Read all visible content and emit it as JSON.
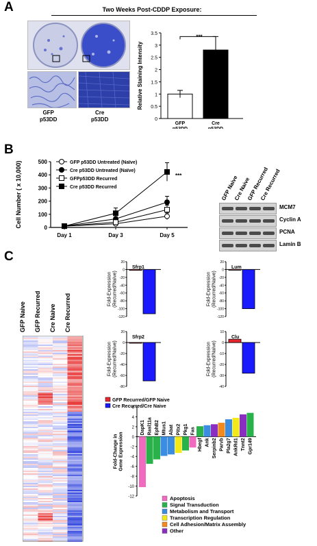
{
  "panelA": {
    "letter": "A",
    "title": "Two Weeks Post-CDDP Exposure:",
    "micro_labels": [
      "GFP\np53DD",
      "Cre\np53DD"
    ],
    "significance": "***",
    "chart_data": {
      "type": "bar",
      "categories": [
        "GFP p53DD",
        "Cre p53DD"
      ],
      "tick_labels": [
        [
          "GFP",
          "p53DD"
        ],
        [
          "Cre",
          "p53DD"
        ]
      ],
      "values": [
        1.0,
        2.8
      ],
      "errors": [
        0.15,
        0.55
      ],
      "ylabel": "Relative Staining Intensity",
      "ylim": [
        0,
        3.5
      ],
      "yticks": [
        "0",
        "0.5",
        "1",
        "1.5",
        "2",
        "2.5",
        "3",
        "3.5"
      ],
      "bar_colors": [
        "#ffffff",
        "#000000"
      ]
    }
  },
  "panelB": {
    "letter": "B",
    "significance": "***",
    "chart_data": {
      "type": "line",
      "x": [
        "Day 1",
        "Day 3",
        "Day 5"
      ],
      "ylabel": "Cell Number ( x 10,000)",
      "ylim": [
        0,
        500
      ],
      "yticks": [
        "0",
        "100",
        "200",
        "300",
        "400",
        "500"
      ],
      "series": [
        {
          "name": "GFP p53DD Untreated (Naïve)",
          "values": [
            10,
            28,
            85
          ],
          "errors": [
            3,
            8,
            25
          ],
          "marker": "circle-open"
        },
        {
          "name": "Cre p53DD Untreated (Naïve)",
          "values": [
            10,
            65,
            192
          ],
          "errors": [
            3,
            15,
            45
          ],
          "marker": "circle-filled"
        },
        {
          "name": "GFPp53DD Recurred",
          "values": [
            10,
            40,
            135
          ],
          "errors": [
            3,
            12,
            35
          ],
          "marker": "square-open"
        },
        {
          "name": "Cre p53DD Recurred",
          "values": [
            10,
            108,
            422
          ],
          "errors": [
            4,
            40,
            70
          ],
          "marker": "square-filled"
        }
      ]
    },
    "blot": {
      "lanes": [
        "GFP Naive",
        "Cre Naive",
        "GFP Recurred",
        "Cre Recurred"
      ],
      "bands": [
        "MCM7",
        "Cyclin A",
        "PCNA",
        "Lamin B"
      ]
    }
  },
  "panelC": {
    "letter": "C",
    "heatmap_columns": [
      "GFP Naive",
      "GFP Recurred",
      "Cre Naive",
      "Cre Recurred"
    ],
    "fold_ylabel": "Fold-Expression\n(Recurred/Naïve)",
    "small_charts": [
      {
        "gene": "Sfrp1",
        "values": [
          -2,
          -113
        ],
        "ylim": [
          -120,
          20
        ],
        "yticks": [
          "20",
          "0",
          "-20",
          "-40",
          "-60",
          "-80",
          "-100",
          "-120"
        ]
      },
      {
        "gene": "Lum",
        "values": [
          -1,
          -100
        ],
        "ylim": [
          -120,
          20
        ],
        "yticks": [
          "20",
          "0",
          "-20",
          "-40",
          "-60",
          "-80",
          "-100",
          "-120"
        ]
      },
      {
        "gene": "Sfrp2",
        "values": [
          -1,
          -70
        ],
        "ylim": [
          -80,
          20
        ],
        "yticks": [
          "20",
          "0",
          "-20",
          "-40",
          "-60",
          "-80"
        ]
      },
      {
        "gene": "Clu",
        "values": [
          3,
          -28
        ],
        "ylim": [
          -40,
          10
        ],
        "yticks": [
          "10",
          "0",
          "-10",
          "-20",
          "-30",
          "-40"
        ]
      }
    ],
    "small_legend": [
      {
        "label": "GFP Recurred/GFP Naive",
        "color": "#e8262e"
      },
      {
        "label": "Cre Recurred/Cre Naive",
        "color": "#1a1aff"
      }
    ],
    "gene_chart": {
      "type": "bar",
      "ylabel": "Fold-Change in\nGene Expression",
      "ylim": [
        -12,
        6
      ],
      "yticks": [
        "6",
        "4",
        "2",
        "0",
        "-2",
        "-4",
        "-6",
        "-8",
        "-10",
        "-12"
      ],
      "genes": [
        {
          "name": "DapK1",
          "value": -10.2,
          "category": "Apoptosis"
        },
        {
          "name": "Rasl11a",
          "value": -5.5,
          "category": "Signal Transduction"
        },
        {
          "name": "EphB2",
          "value": -4.6,
          "category": "Signal Transduction"
        },
        {
          "name": "Mtus1",
          "value": -3.9,
          "category": "Metabolism and Transport"
        },
        {
          "name": "Abat",
          "value": -3.6,
          "category": "Metabolism and Transport"
        },
        {
          "name": "Pitx2",
          "value": -3.3,
          "category": "Transcription Regulation"
        },
        {
          "name": "Pkg1",
          "value": -2.8,
          "category": "Signal Transduction"
        },
        {
          "name": "Fas",
          "value": -2.2,
          "category": "Apoptosis"
        },
        {
          "name": "Hbegf",
          "value": 2.1,
          "category": "Signal Transduction"
        },
        {
          "name": "Ank",
          "value": 2.3,
          "category": "Metabolism and Transport"
        },
        {
          "name": "Serpinb2",
          "value": 2.5,
          "category": "Other"
        },
        {
          "name": "Parvb",
          "value": 2.8,
          "category": "Cell Adhesion/Matrix Assembly"
        },
        {
          "name": "Pla2g7",
          "value": 3.5,
          "category": "Metabolism and Transport"
        },
        {
          "name": "AnkRd1",
          "value": 3.8,
          "category": "Transcription Regulation"
        },
        {
          "name": "Tnnt2",
          "value": 4.5,
          "category": "Other"
        },
        {
          "name": "Gpr149",
          "value": 4.8,
          "category": "Signal Transduction"
        }
      ],
      "legend": [
        {
          "label": "Apoptosis",
          "color": "#f06ac0"
        },
        {
          "label": "Signal Transduction",
          "color": "#2ab24a"
        },
        {
          "label": "Metabolism and Transport",
          "color": "#3a8de0"
        },
        {
          "label": "Transcription Regulation",
          "color": "#f2e81a"
        },
        {
          "label": "Cell Adhesion/Matrix Assembly",
          "color": "#f28a20"
        },
        {
          "label": "Other",
          "color": "#8a2ec0"
        }
      ]
    }
  }
}
